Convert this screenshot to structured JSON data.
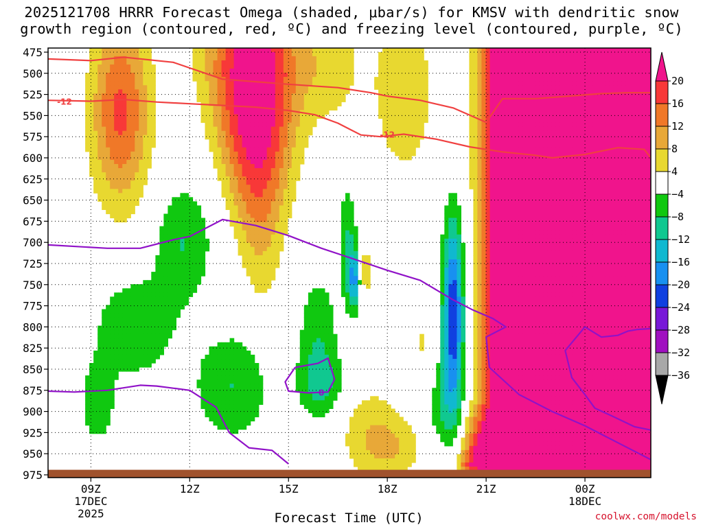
{
  "title": {
    "line1": "2025121708 HRRR Forecast Omega (shaded, μbar/s) for KMSV with dendritic snow",
    "line2": "growth region (contoured, red, ºC) and freezing level (contoured, purple, ºC)"
  },
  "chart_data": {
    "type": "time-height cross section (filled contours)",
    "title": "2025121708 HRRR Forecast Omega (shaded, μbar/s) for KMSV with dendritic snow growth region (contoured, red, ºC) and freezing level (contoured, purple, ºC)",
    "xlabel": "Forecast Time (UTC)",
    "ylabel": "",
    "y_axis": {
      "unit": "hPa",
      "inverted": true,
      "ticks": [
        475,
        500,
        525,
        550,
        575,
        600,
        625,
        650,
        675,
        700,
        725,
        750,
        775,
        800,
        825,
        850,
        875,
        900,
        925,
        950,
        975
      ],
      "range": [
        975,
        470
      ]
    },
    "x_axis": {
      "range_hours_utc": [
        7.7,
        26.0
      ],
      "ticks": [
        {
          "hour": 9,
          "label": "09Z",
          "date": "17DEC",
          "year": "2025"
        },
        {
          "hour": 12,
          "label": "12Z",
          "date": "",
          "year": ""
        },
        {
          "hour": 15,
          "label": "15Z",
          "date": "",
          "year": ""
        },
        {
          "hour": 18,
          "label": "18Z",
          "date": "",
          "year": ""
        },
        {
          "hour": 21,
          "label": "21Z",
          "date": "",
          "year": ""
        },
        {
          "hour": 24,
          "label": "00Z",
          "date": "18DEC",
          "year": ""
        }
      ]
    },
    "grid": true,
    "colorbar": {
      "labels": [
        "20",
        "16",
        "12",
        "8",
        "4",
        "−4",
        "−8",
        "−12",
        "−16",
        "−20",
        "−24",
        "−28",
        "−32",
        "−36"
      ],
      "bins": [
        {
          "min": 20,
          "max": null,
          "color": "#f0148c"
        },
        {
          "min": 16,
          "max": 20,
          "color": "#f83838"
        },
        {
          "min": 12,
          "max": 16,
          "color": "#f07828"
        },
        {
          "min": 8,
          "max": 12,
          "color": "#e8a838"
        },
        {
          "min": 4,
          "max": 8,
          "color": "#e8d830"
        },
        {
          "min": -4,
          "max": 4,
          "color": "#ffffff"
        },
        {
          "min": -8,
          "max": -4,
          "color": "#10c810"
        },
        {
          "min": -12,
          "max": -8,
          "color": "#10c890"
        },
        {
          "min": -16,
          "max": -12,
          "color": "#10b8d0"
        },
        {
          "min": -20,
          "max": -16,
          "color": "#1890f0"
        },
        {
          "min": -24,
          "max": -20,
          "color": "#1040e0"
        },
        {
          "min": -28,
          "max": -24,
          "color": "#7818d8"
        },
        {
          "min": -32,
          "max": -28,
          "color": "#a010c0"
        },
        {
          "min": -36,
          "max": -32,
          "color": "#a8a8a8"
        },
        {
          "min": null,
          "max": -36,
          "color": "#000000"
        }
      ]
    },
    "omega_regions": [
      {
        "name": "early ascent max near 10Z",
        "peak_value": 16,
        "hours": [
          8.0,
          11.0
        ],
        "pressure": [
          470,
          700
        ]
      },
      {
        "name": "ascent max near 14Z",
        "peak_value": 22,
        "hours": [
          12.2,
          15.3
        ],
        "pressure": [
          470,
          770
        ]
      },
      {
        "name": "strong ascent after 21Z",
        "peak_value": 22,
        "hours": [
          20.7,
          26.0
        ],
        "pressure": [
          470,
          965
        ]
      },
      {
        "name": "subsidence band 09Z-16Z",
        "peak_value": -6,
        "hours": [
          8.8,
          16.5
        ],
        "pressure": [
          620,
          945
        ]
      },
      {
        "name": "subsidence near 17Z",
        "peak_value": -14,
        "hours": [
          16.7,
          17.3
        ],
        "pressure": [
          640,
          820
        ]
      },
      {
        "name": "subsidence max near 20Z",
        "peak_value": -22,
        "hours": [
          19.4,
          20.1
        ],
        "pressure": [
          620,
          930
        ]
      }
    ],
    "series": [
      {
        "name": "-12",
        "unit": "ºC",
        "color": "#f04040",
        "x": [
          7.7,
          9.0,
          10.0,
          11.5,
          13.0,
          15.0,
          16.5,
          17.5,
          18.0,
          19.0,
          20.0,
          21.0,
          21.5,
          22.5,
          23.5,
          24.5,
          25.3,
          26.0
        ],
        "y": [
          483,
          485,
          481,
          487,
          507,
          513,
          517,
          523,
          527,
          532,
          541,
          558,
          530,
          530,
          527,
          524,
          523,
          523
        ]
      },
      {
        "name": "-12",
        "unit": "ºC",
        "color": "#f04040",
        "x": [
          7.7,
          9.0,
          10.0,
          11.0,
          12.0,
          13.0,
          14.0,
          15.0,
          15.8,
          16.5,
          17.2,
          17.8,
          18.5,
          19.5,
          20.5,
          21.5,
          22.5,
          23.0,
          24.0,
          25.0,
          25.8,
          26.0
        ],
        "y": [
          532,
          533,
          531,
          534,
          536,
          538,
          540,
          544,
          549,
          559,
          573,
          575,
          572,
          578,
          587,
          593,
          597,
          600,
          596,
          588,
          590,
          600
        ]
      },
      {
        "name": "0",
        "unit": "ºC",
        "color": "#9012c8",
        "x": [
          7.7,
          9.5,
          10.5,
          11.5,
          12.0,
          13.0,
          14.0,
          15.0,
          16.0,
          17.0,
          18.0,
          19.0,
          20.0,
          20.6,
          21.2,
          21.6,
          21.0,
          21.1,
          22.0,
          23.0,
          24.0,
          25.0,
          26.0
        ],
        "y": [
          703,
          707,
          707,
          697,
          693,
          673,
          680,
          692,
          707,
          720,
          733,
          745,
          768,
          780,
          790,
          800,
          812,
          848,
          880,
          900,
          917,
          937,
          957
        ]
      },
      {
        "name": "0",
        "unit": "ºC",
        "color": "#9012c8",
        "x": [
          7.7,
          8.5,
          9.5,
          10.5,
          11.0,
          12.0,
          12.8,
          13.2,
          13.8,
          14.5,
          15.0
        ],
        "y": [
          876,
          877,
          875,
          869,
          870,
          875,
          895,
          925,
          943,
          946,
          962
        ]
      },
      {
        "name": "0",
        "unit": "ºC",
        "color": "#9012c8",
        "x": [
          15.2,
          15.9,
          16.2,
          16.4,
          16.2,
          15.6,
          15.0,
          14.9,
          15.2
        ],
        "y": [
          848,
          843,
          837,
          862,
          877,
          878,
          876,
          865,
          848
        ]
      },
      {
        "name": "0",
        "unit": "ºC",
        "color": "#9012c8",
        "x": [
          26.0,
          25.6,
          25.3,
          25.0,
          24.5,
          24.0,
          23.4,
          23.6,
          24.0,
          24.3,
          24.8,
          25.5,
          26.0
        ],
        "y": [
          802,
          803,
          805,
          810,
          812,
          800,
          828,
          860,
          880,
          896,
          905,
          918,
          922
        ]
      }
    ],
    "contour_labels": [
      {
        "text": "-12",
        "hour": 8.2,
        "pressure": 534,
        "color": "#f04040"
      },
      {
        "text": "-12",
        "hour": 18.0,
        "pressure": 573,
        "color": "#f04040"
      },
      {
        "text": "0",
        "hour": 16.0,
        "pressure": 878,
        "color": "#9012c8"
      }
    ],
    "terrain": {
      "color": "#a0522d",
      "pressure": 969
    }
  },
  "footer": {
    "xlabel": "Forecast Time (UTC)",
    "credit": "coolwx.com/models"
  }
}
